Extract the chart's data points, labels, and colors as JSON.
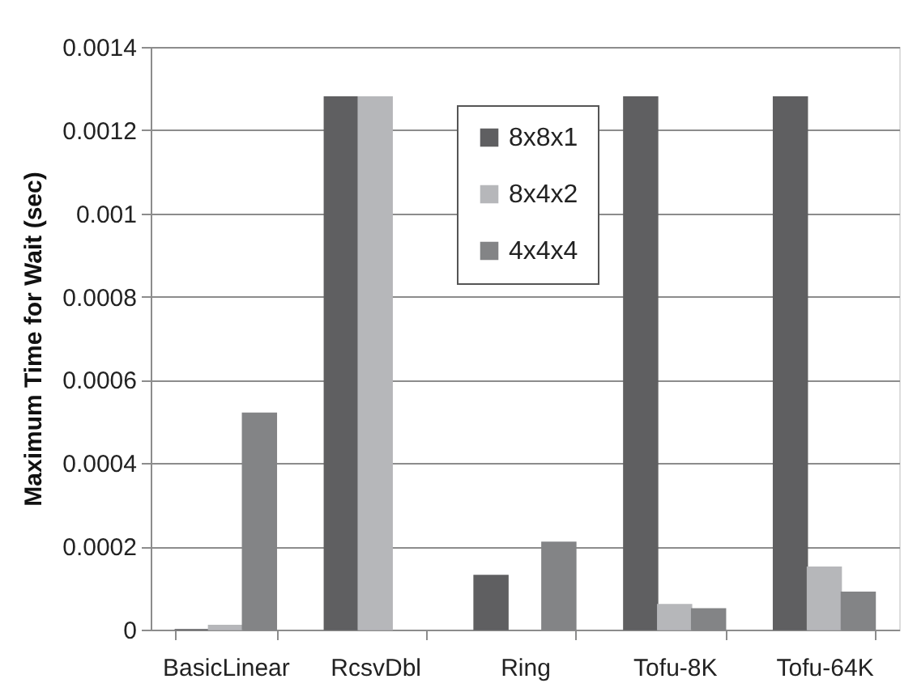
{
  "chart_data": {
    "type": "bar",
    "ylabel": "Maximum Time for Wait (sec)",
    "categories": [
      "BasicLinear",
      "RcsvDbl",
      "Ring",
      "Tofu-8K",
      "Tofu-64K"
    ],
    "series": [
      {
        "name": "8x8x1",
        "color": "#5f5f61",
        "values": [
          0,
          0.00128,
          0.00013,
          0.00128,
          0.00128
        ]
      },
      {
        "name": "8x4x2",
        "color": "#b6b7ba",
        "values": [
          1e-05,
          0.00128,
          null,
          6e-05,
          0.00015
        ]
      },
      {
        "name": "4x4x4",
        "color": "#838486",
        "values": [
          0.00052,
          null,
          0.00021,
          5e-05,
          9e-05
        ]
      }
    ],
    "ylim": [
      0,
      0.0014
    ],
    "yticks": [
      0,
      0.0002,
      0.0004,
      0.0006,
      0.0008,
      0.001,
      0.0012,
      0.0014
    ],
    "grid": "y",
    "legend": "top"
  }
}
